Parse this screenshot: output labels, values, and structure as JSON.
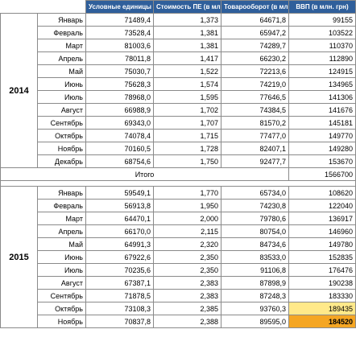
{
  "headers": {
    "units": "Условные единицы (ПЕ)",
    "cost": "Стоимость ПЕ (в млн. грн)",
    "turnover": "Товарооборот (в млн. грн)",
    "gdp": "ВВП (в млн. грн)"
  },
  "year_2014": {
    "label": "2014",
    "rows": [
      {
        "month": "Январь",
        "units": "71489,4",
        "cost": "1,373",
        "turnover": "64671,8",
        "gdp": "99155"
      },
      {
        "month": "Февраль",
        "units": "73528,4",
        "cost": "1,381",
        "turnover": "65947,2",
        "gdp": "103522"
      },
      {
        "month": "Март",
        "units": "81003,6",
        "cost": "1,381",
        "turnover": "74289,7",
        "gdp": "110370"
      },
      {
        "month": "Апрель",
        "units": "78011,8",
        "cost": "1,417",
        "turnover": "66230,2",
        "gdp": "112890"
      },
      {
        "month": "Май",
        "units": "75030,7",
        "cost": "1,522",
        "turnover": "72213,6",
        "gdp": "124915"
      },
      {
        "month": "Июнь",
        "units": "75628,3",
        "cost": "1,574",
        "turnover": "74219,0",
        "gdp": "134965"
      },
      {
        "month": "Июль",
        "units": "78968,0",
        "cost": "1,595",
        "turnover": "77646,5",
        "gdp": "141306"
      },
      {
        "month": "Август",
        "units": "66988,9",
        "cost": "1,702",
        "turnover": "74384,5",
        "gdp": "141676"
      },
      {
        "month": "Сентябрь",
        "units": "69343,0",
        "cost": "1,707",
        "turnover": "81570,2",
        "gdp": "145181"
      },
      {
        "month": "Октябрь",
        "units": "74078,4",
        "cost": "1,715",
        "turnover": "77477,0",
        "gdp": "149770"
      },
      {
        "month": "Ноябрь",
        "units": "70160,5",
        "cost": "1,728",
        "turnover": "82407,1",
        "gdp": "149280"
      },
      {
        "month": "Декабрь",
        "units": "68754,6",
        "cost": "1,750",
        "turnover": "92477,7",
        "gdp": "153670"
      }
    ]
  },
  "total": {
    "label": "Итого",
    "gdp": "1566700"
  },
  "year_2015": {
    "label": "2015",
    "rows": [
      {
        "month": "Январь",
        "units": "59549,1",
        "cost": "1,770",
        "turnover": "65734,0",
        "gdp": "108620"
      },
      {
        "month": "Февраль",
        "units": "56913,8",
        "cost": "1,950",
        "turnover": "74230,8",
        "gdp": "122040"
      },
      {
        "month": "Март",
        "units": "64470,1",
        "cost": "2,000",
        "turnover": "79780,6",
        "gdp": "136917"
      },
      {
        "month": "Апрель",
        "units": "66170,0",
        "cost": "2,115",
        "turnover": "80754,0",
        "gdp": "146960"
      },
      {
        "month": "Май",
        "units": "64991,3",
        "cost": "2,320",
        "turnover": "84734,6",
        "gdp": "149780"
      },
      {
        "month": "Июнь",
        "units": "67922,6",
        "cost": "2,350",
        "turnover": "83533,0",
        "gdp": "152835"
      },
      {
        "month": "Июль",
        "units": "70235,6",
        "cost": "2,350",
        "turnover": "91106,8",
        "gdp": "176476"
      },
      {
        "month": "Август",
        "units": "67387,1",
        "cost": "2,383",
        "turnover": "87898,9",
        "gdp": "190238"
      },
      {
        "month": "Сентябрь",
        "units": "71878,5",
        "cost": "2,383",
        "turnover": "87248,3",
        "gdp": "183330"
      },
      {
        "month": "Октябрь",
        "units": "73108,3",
        "cost": "2,385",
        "turnover": "93760,3",
        "gdp": "189435",
        "highlight": "yellow"
      },
      {
        "month": "Ноябрь",
        "units": "70837,8",
        "cost": "2,388",
        "turnover": "89595,0",
        "gdp": "184520",
        "highlight": "orange"
      }
    ]
  },
  "colors": {
    "header_bg": "#2f5f9b",
    "header_text": "#ffffff",
    "highlight_yellow": "#ffe98a",
    "highlight_orange": "#f5a623",
    "border": "#8a8a8a"
  }
}
